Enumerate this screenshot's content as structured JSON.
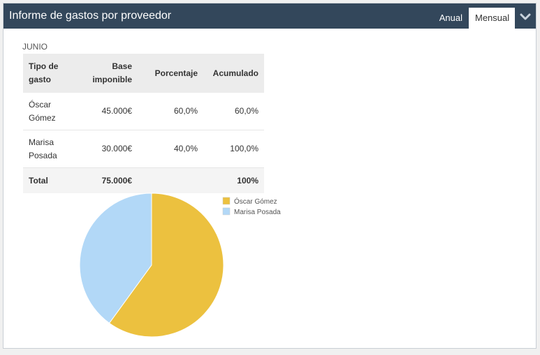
{
  "panel": {
    "title": "Informe de gastos por proveedor",
    "tabs": [
      {
        "label": "Anual",
        "active": false
      },
      {
        "label": "Mensual",
        "active": true
      }
    ],
    "collapse_icon": "chevron-down-icon"
  },
  "report": {
    "period": "JUNIO",
    "headers": [
      "Tipo de gasto",
      "Base imponible",
      "Porcentaje",
      "Acumulado"
    ],
    "rows": [
      {
        "name": "Óscar Gómez",
        "base": "45.000€",
        "percent": "60,0%",
        "accum": "60,0%"
      },
      {
        "name": "Marisa Posada",
        "base": "30.000€",
        "percent": "40,0%",
        "accum": "100,0%"
      }
    ],
    "total": {
      "label": "Total",
      "base": "75.000€",
      "percent": "",
      "accum": "100%"
    }
  },
  "chart_data": {
    "type": "pie",
    "categories": [
      "Óscar Gómez",
      "Marisa Posada"
    ],
    "values": [
      45000,
      30000
    ],
    "colors": [
      "#ecc13f",
      "#b2d8f7"
    ],
    "legend_position": "top-right"
  }
}
